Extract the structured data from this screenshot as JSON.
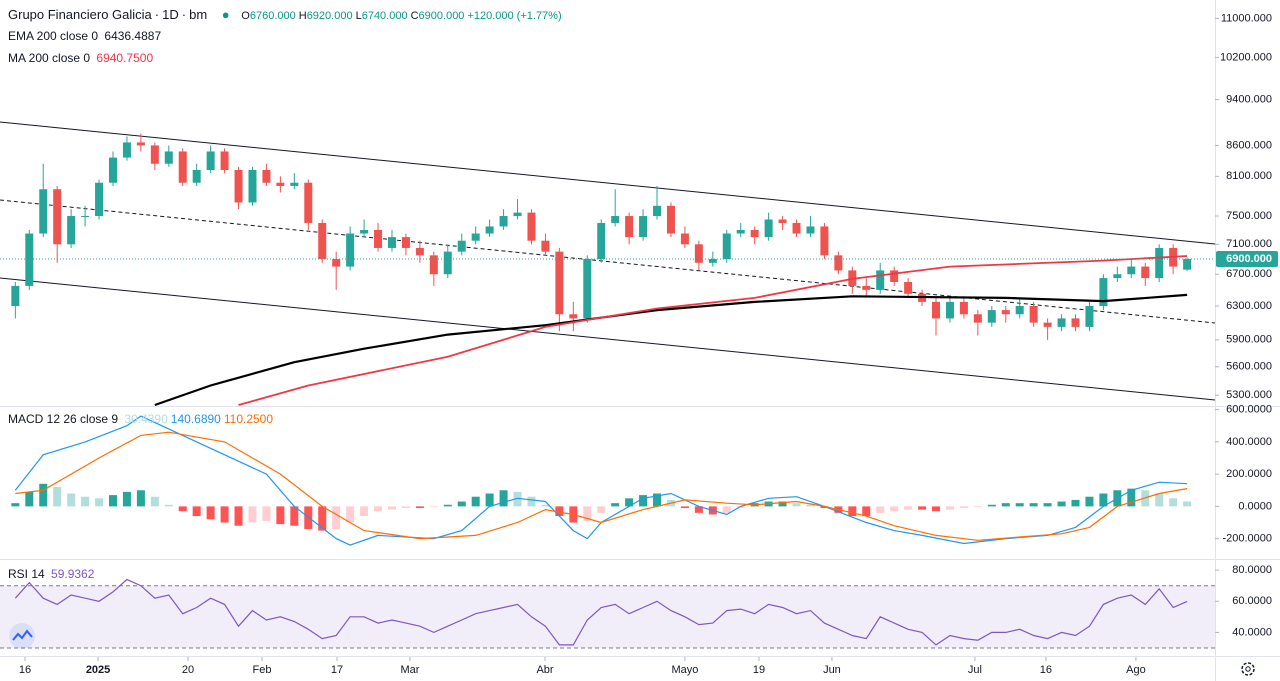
{
  "chart_data": [
    {
      "type": "candlestick",
      "title": "Grupo Financiero Galicia",
      "interval": "1D",
      "exchange": "bm",
      "ohlc_legend": [
        {
          "label": "O",
          "value": "6760.000"
        },
        {
          "label": "H",
          "value": "6920.000"
        },
        {
          "label": "L",
          "value": "6740.000"
        },
        {
          "label": "C",
          "value": "6900.000"
        }
      ],
      "change": "+120.000 (+1.77%)",
      "log_scale": true,
      "ylim": [
        5200,
        11400
      ],
      "yticks": [
        {
          "value": 11000,
          "label": "11000.000"
        },
        {
          "value": 10200,
          "label": "10200.000"
        },
        {
          "value": 9400,
          "label": "9400.000"
        },
        {
          "value": 8600,
          "label": "8600.000"
        },
        {
          "value": 8100,
          "label": "8100.000"
        },
        {
          "value": 7500,
          "label": "7500.000"
        },
        {
          "value": 7100,
          "label": "7100.000"
        },
        {
          "value": 6700,
          "label": "6700.000"
        },
        {
          "value": 6300,
          "label": "6300.000"
        },
        {
          "value": 5900,
          "label": "5900.000"
        },
        {
          "value": 5600,
          "label": "5600.000"
        },
        {
          "value": 5300,
          "label": "5300.000"
        }
      ],
      "xlim": [
        -1.1,
        86
      ],
      "xticks": [
        {
          "value": 0.69,
          "label": "16"
        },
        {
          "value": 5.93,
          "label": "2025"
        },
        {
          "value": 12.38,
          "label": "20"
        },
        {
          "value": 17.68,
          "label": "Feb"
        },
        {
          "value": 23.06,
          "label": "17"
        },
        {
          "value": 28.29,
          "label": "Mar"
        },
        {
          "value": 37.97,
          "label": "Abr"
        },
        {
          "value": 48.0,
          "label": "Mayo"
        },
        {
          "value": 53.31,
          "label": "19"
        },
        {
          "value": 58.54,
          "label": "Jun"
        },
        {
          "value": 68.79,
          "label": "Jul"
        },
        {
          "value": 73.88,
          "label": "16"
        },
        {
          "value": 80.33,
          "label": "Ago"
        }
      ],
      "up_color": "#26a69a",
      "down_color": "#ef5350",
      "candles": [
        [
          6300,
          6600,
          6150,
          6550
        ],
        [
          6550,
          7300,
          6500,
          7250
        ],
        [
          7250,
          8300,
          7200,
          7900
        ],
        [
          7900,
          7950,
          6850,
          7100
        ],
        [
          7100,
          7600,
          7050,
          7500
        ],
        [
          7500,
          7650,
          7350,
          7500
        ],
        [
          7500,
          8050,
          7450,
          8000
        ],
        [
          8000,
          8500,
          7950,
          8400
        ],
        [
          8400,
          8750,
          8350,
          8650
        ],
        [
          8650,
          8800,
          8500,
          8600
        ],
        [
          8600,
          8650,
          8200,
          8300
        ],
        [
          8300,
          8600,
          8250,
          8500
        ],
        [
          8500,
          8550,
          7950,
          8000
        ],
        [
          8000,
          8300,
          7950,
          8200
        ],
        [
          8200,
          8600,
          8150,
          8500
        ],
        [
          8500,
          8550,
          8150,
          8200
        ],
        [
          8200,
          8250,
          7600,
          7700
        ],
        [
          7700,
          8250,
          7650,
          8200
        ],
        [
          8200,
          8300,
          7950,
          8000
        ],
        [
          8000,
          8100,
          7850,
          7950
        ],
        [
          7950,
          8150,
          7900,
          8000
        ],
        [
          8000,
          8050,
          7300,
          7400
        ],
        [
          7400,
          7450,
          6850,
          6900
        ],
        [
          6900,
          7000,
          6500,
          6800
        ],
        [
          6800,
          7350,
          6750,
          7250
        ],
        [
          7250,
          7450,
          7200,
          7300
        ],
        [
          7300,
          7400,
          7000,
          7050
        ],
        [
          7050,
          7300,
          7000,
          7200
        ],
        [
          7200,
          7250,
          6950,
          7050
        ],
        [
          7050,
          7150,
          6850,
          6950
        ],
        [
          6950,
          7000,
          6550,
          6700
        ],
        [
          6700,
          7100,
          6650,
          7000
        ],
        [
          7000,
          7250,
          6950,
          7150
        ],
        [
          7150,
          7350,
          7100,
          7250
        ],
        [
          7250,
          7450,
          7200,
          7350
        ],
        [
          7350,
          7600,
          7300,
          7500
        ],
        [
          7500,
          7750,
          7450,
          7550
        ],
        [
          7550,
          7600,
          7100,
          7150
        ],
        [
          7150,
          7250,
          6950,
          7000
        ],
        [
          7000,
          7050,
          6000,
          6200
        ],
        [
          6200,
          6350,
          6000,
          6150
        ],
        [
          6150,
          6950,
          6100,
          6900
        ],
        [
          6900,
          7450,
          6850,
          7400
        ],
        [
          7400,
          7900,
          7350,
          7500
        ],
        [
          7500,
          7550,
          7100,
          7200
        ],
        [
          7200,
          7600,
          7150,
          7500
        ],
        [
          7500,
          7950,
          7450,
          7650
        ],
        [
          7650,
          7700,
          7200,
          7250
        ],
        [
          7250,
          7350,
          7050,
          7100
        ],
        [
          7100,
          7150,
          6750,
          6850
        ],
        [
          6850,
          7000,
          6800,
          6900
        ],
        [
          6900,
          7300,
          6850,
          7250
        ],
        [
          7250,
          7400,
          7200,
          7300
        ],
        [
          7300,
          7350,
          7100,
          7200
        ],
        [
          7200,
          7550,
          7150,
          7450
        ],
        [
          7450,
          7500,
          7300,
          7400
        ],
        [
          7400,
          7450,
          7200,
          7250
        ],
        [
          7250,
          7500,
          7200,
          7350
        ],
        [
          7350,
          7400,
          6900,
          6950
        ],
        [
          6950,
          7000,
          6700,
          6750
        ],
        [
          6750,
          6800,
          6450,
          6550
        ],
        [
          6550,
          6650,
          6400,
          6500
        ],
        [
          6500,
          6850,
          6450,
          6750
        ],
        [
          6750,
          6800,
          6550,
          6600
        ],
        [
          6600,
          6650,
          6400,
          6450
        ],
        [
          6450,
          6500,
          6300,
          6350
        ],
        [
          6350,
          6400,
          5950,
          6150
        ],
        [
          6150,
          6400,
          6100,
          6350
        ],
        [
          6350,
          6400,
          6150,
          6200
        ],
        [
          6200,
          6250,
          5950,
          6100
        ],
        [
          6100,
          6300,
          6050,
          6250
        ],
        [
          6250,
          6300,
          6100,
          6200
        ],
        [
          6200,
          6400,
          6150,
          6300
        ],
        [
          6300,
          6350,
          6050,
          6100
        ],
        [
          6100,
          6150,
          5900,
          6050
        ],
        [
          6050,
          6200,
          6000,
          6150
        ],
        [
          6150,
          6200,
          6000,
          6050
        ],
        [
          6050,
          6350,
          6000,
          6300
        ],
        [
          6300,
          6700,
          6250,
          6650
        ],
        [
          6650,
          6800,
          6600,
          6700
        ],
        [
          6700,
          6900,
          6650,
          6800
        ],
        [
          6800,
          6850,
          6550,
          6650
        ],
        [
          6650,
          7100,
          6600,
          7050
        ],
        [
          7050,
          7100,
          6700,
          6800
        ],
        [
          6760,
          6920,
          6740,
          6900
        ]
      ],
      "last_price_label": "6900.000",
      "series": [
        {
          "name": "EMA 200 close 0",
          "value_label": "6436.4887",
          "color": "#000000",
          "x": [
            10,
            14,
            20,
            25,
            31,
            38,
            46,
            53,
            60,
            71,
            78,
            84
          ],
          "values": [
            5200,
            5400,
            5650,
            5800,
            5960,
            6070,
            6250,
            6350,
            6420,
            6400,
            6360,
            6436.4887
          ]
        },
        {
          "name": "MA 200 close 0",
          "value_label": "6940.7500",
          "color": "#f23645",
          "x": [
            16,
            21,
            31,
            38,
            46,
            53,
            60,
            67,
            78,
            84
          ],
          "values": [
            5200,
            5400,
            5710,
            6050,
            6270,
            6400,
            6640,
            6800,
            6880,
            6940.75
          ]
        }
      ]
    },
    {
      "type": "macd",
      "name": "MACD 12 26 close 9",
      "ylim": [
        -320,
        610
      ],
      "yticks": [
        {
          "value": 600,
          "label": "600.0000"
        },
        {
          "value": 400,
          "label": "400.0000"
        },
        {
          "value": 200,
          "label": "200.0000"
        },
        {
          "value": 0,
          "label": "0.0000"
        },
        {
          "value": -200,
          "label": "-200.0000"
        }
      ],
      "histogram": {
        "value_label": "30.4390",
        "colors": {
          "up_rising": "#26a69a",
          "up_falling": "#b2dfdb",
          "down_falling": "#ff5252",
          "down_rising": "#ffcdd2"
        },
        "values": [
          20,
          90,
          140,
          120,
          80,
          60,
          50,
          70,
          90,
          100,
          60,
          10,
          -30,
          -60,
          -80,
          -100,
          -120,
          -100,
          -90,
          -110,
          -120,
          -140,
          -150,
          -140,
          -100,
          -60,
          -30,
          -20,
          -10,
          -10,
          -5,
          10,
          30,
          60,
          80,
          100,
          90,
          60,
          10,
          -60,
          -100,
          -90,
          -40,
          20,
          50,
          70,
          80,
          40,
          -10,
          -40,
          -50,
          -40,
          -10,
          20,
          30,
          30,
          20,
          10,
          -10,
          -40,
          -60,
          -60,
          -40,
          -30,
          -20,
          -20,
          -30,
          -20,
          -10,
          -5,
          10,
          20,
          20,
          20,
          20,
          30,
          40,
          60,
          80,
          100,
          110,
          100,
          80,
          50,
          30.439
        ]
      },
      "series": [
        {
          "value_label": "140.6890",
          "color": "#2196f3",
          "x": [
            0,
            2,
            5,
            8,
            9,
            13,
            18,
            20,
            23,
            24,
            26,
            30,
            32,
            34,
            36,
            38,
            40,
            41,
            42,
            45,
            47,
            49,
            51,
            52,
            54,
            56,
            58,
            61,
            63,
            65,
            68,
            71,
            74,
            76,
            78,
            80,
            82,
            84
          ],
          "values": [
            100,
            320,
            400,
            500,
            560,
            400,
            200,
            0,
            -200,
            -240,
            -180,
            -200,
            -150,
            0,
            50,
            30,
            -150,
            -200,
            -100,
            50,
            80,
            0,
            -50,
            0,
            50,
            60,
            0,
            -100,
            -150,
            -180,
            -230,
            -200,
            -180,
            -130,
            0,
            100,
            150,
            140.689
          ]
        },
        {
          "value_label": "110.2500",
          "color": "#ff6d00",
          "x": [
            0,
            2,
            6,
            9,
            11,
            15,
            19,
            22,
            25,
            29,
            33,
            36,
            38,
            40,
            42,
            45,
            48,
            51,
            53,
            56,
            58,
            61,
            63,
            66,
            69,
            72,
            75,
            77,
            79,
            82,
            84
          ],
          "values": [
            80,
            100,
            300,
            440,
            460,
            400,
            200,
            0,
            -150,
            -200,
            -180,
            -100,
            -20,
            -50,
            -100,
            -20,
            40,
            20,
            10,
            30,
            0,
            -60,
            -120,
            -180,
            -210,
            -190,
            -170,
            -130,
            0,
            80,
            110.25
          ]
        }
      ]
    },
    {
      "type": "rsi",
      "name": "RSI 14",
      "value_label": "59.9362",
      "color": "#7e57c2",
      "ylim": [
        25.5,
        86.5
      ],
      "yticks": [
        {
          "value": 80,
          "label": "80.0000"
        },
        {
          "value": 60,
          "label": "60.0000"
        },
        {
          "value": 40,
          "label": "40.0000"
        }
      ],
      "upper_band": 70,
      "lower_band": 30,
      "values": [
        62,
        72,
        62,
        58,
        64,
        62,
        60,
        66,
        74,
        70,
        62,
        64,
        52,
        56,
        62,
        58,
        44,
        54,
        48,
        50,
        47,
        42,
        36,
        38,
        50,
        50,
        46,
        48,
        46,
        44,
        40,
        44,
        48,
        52,
        54,
        56,
        58,
        50,
        44,
        32,
        32,
        48,
        56,
        58,
        52,
        56,
        60,
        54,
        50,
        45,
        46,
        54,
        55,
        52,
        58,
        56,
        52,
        54,
        46,
        42,
        38,
        36,
        50,
        46,
        42,
        40,
        32,
        38,
        36,
        35,
        40,
        40,
        42,
        38,
        36,
        40,
        38,
        44,
        58,
        62,
        64,
        58,
        68,
        56,
        59.9362
      ]
    }
  ]
}
